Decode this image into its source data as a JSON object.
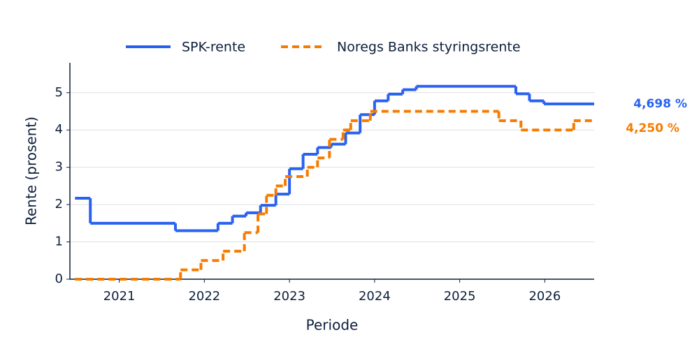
{
  "chart_data": {
    "type": "step",
    "x_label": "Periode",
    "y_label": "Rente (prosent)",
    "xlim": [
      2020.42,
      2026.58
    ],
    "xticks": [
      2021,
      2022,
      2023,
      2024,
      2025,
      2026
    ],
    "ylim": [
      0,
      5.8
    ],
    "yticks": [
      0,
      1,
      2,
      3,
      4,
      5
    ],
    "grid": true,
    "legend": "top",
    "series": [
      {
        "name": "SPK-rente",
        "color": "#2962f0",
        "style": "solid",
        "end_label": "4,698 %",
        "x": [
          2020.48,
          2020.66,
          2021.66,
          2022.16,
          2022.33,
          2022.49,
          2022.66,
          2022.84,
          2023.0,
          2023.16,
          2023.33,
          2023.49,
          2023.66,
          2023.83,
          2024.0,
          2024.16,
          2024.33,
          2024.49,
          2025.66,
          2025.82,
          2025.99
        ],
        "values": [
          2.17,
          1.5,
          1.3,
          1.5,
          1.69,
          1.78,
          1.98,
          2.28,
          2.96,
          3.35,
          3.53,
          3.62,
          3.92,
          4.41,
          4.78,
          4.96,
          5.08,
          5.17,
          4.97,
          4.78,
          4.698
        ]
      },
      {
        "name": "Noregs Banks styringsrente",
        "color": "#f57c00",
        "style": "dashed",
        "end_label": "4,250 %",
        "x": [
          2020.48,
          2021.72,
          2021.96,
          2022.22,
          2022.47,
          2022.63,
          2022.73,
          2022.84,
          2022.95,
          2023.21,
          2023.33,
          2023.47,
          2023.63,
          2023.72,
          2023.95,
          2025.46,
          2025.72,
          2026.34
        ],
        "values": [
          0,
          0.25,
          0.5,
          0.75,
          1.25,
          1.75,
          2.25,
          2.5,
          2.75,
          3.0,
          3.25,
          3.75,
          4.0,
          4.25,
          4.5,
          4.25,
          4.0,
          4.25
        ]
      }
    ]
  }
}
